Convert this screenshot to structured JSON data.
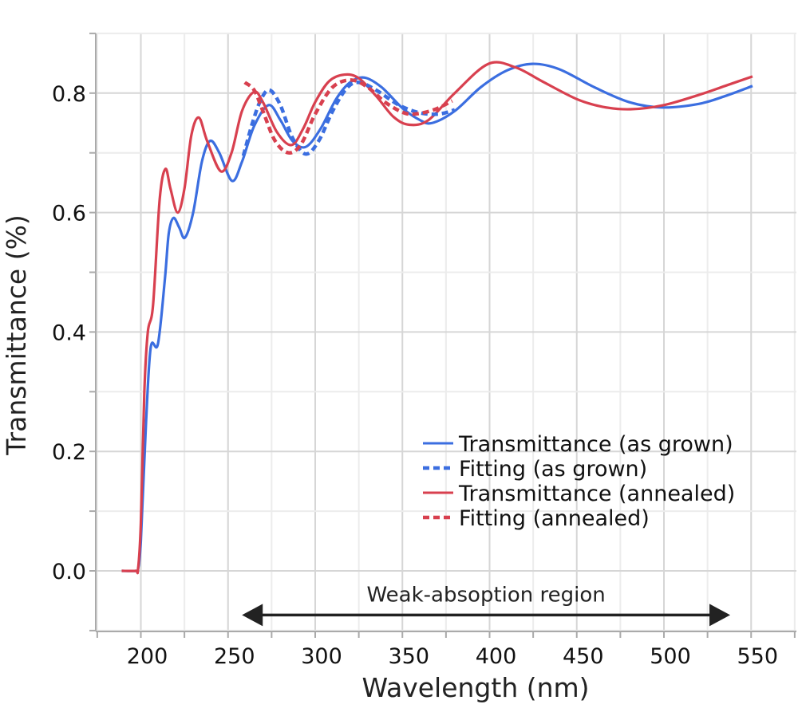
{
  "chart_data": {
    "type": "line",
    "xlabel": "Wavelength (nm)",
    "ylabel": "Transmittance (%)",
    "xlim": [
      174,
      576
    ],
    "ylim": [
      -0.1,
      0.9
    ],
    "xticks": [
      200,
      250,
      300,
      350,
      400,
      450,
      500,
      550
    ],
    "xtick_labels": [
      "200",
      "250",
      "300",
      "350",
      "400",
      "450",
      "500",
      "550"
    ],
    "yticks": [
      0.0,
      0.2,
      0.4,
      0.6,
      0.8
    ],
    "ytick_labels": [
      "0.0",
      "0.2",
      "0.4",
      "0.6",
      "0.8"
    ],
    "grid": true,
    "legend_position": "bottom-right",
    "series": [
      {
        "name": "Transmittance (as grown)",
        "color": "#3b6ee0",
        "dash": false,
        "x": [
          189,
          197,
          198.4,
          200,
          203,
          205.7,
          209.8,
          213.8,
          216,
          218.7,
          222,
          225.3,
          230,
          235,
          239.7,
          245,
          252.3,
          258,
          265,
          273.3,
          280,
          287,
          294.6,
          303,
          312,
          320,
          328.2,
          338,
          350,
          360,
          367.1,
          380,
          395,
          410,
          424.5,
          440,
          460,
          480,
          499,
          520,
          535,
          550.8
        ],
        "y": [
          0,
          0,
          0.003,
          0.05,
          0.25,
          0.375,
          0.38,
          0.489,
          0.565,
          0.591,
          0.575,
          0.558,
          0.6,
          0.685,
          0.72,
          0.7,
          0.653,
          0.685,
          0.745,
          0.78,
          0.755,
          0.72,
          0.71,
          0.74,
          0.79,
          0.818,
          0.826,
          0.81,
          0.775,
          0.755,
          0.75,
          0.77,
          0.81,
          0.838,
          0.849,
          0.84,
          0.81,
          0.785,
          0.776,
          0.782,
          0.795,
          0.812
        ]
      },
      {
        "name": "Fitting (as grown)",
        "color": "#3b6ee0",
        "dash": true,
        "x": [
          258.8,
          264,
          269,
          273.9,
          280,
          287,
          294.6,
          302,
          310,
          318,
          325,
          335,
          348,
          360,
          371,
          380
        ],
        "y": [
          0.695,
          0.75,
          0.79,
          0.805,
          0.78,
          0.725,
          0.698,
          0.72,
          0.77,
          0.808,
          0.818,
          0.805,
          0.78,
          0.767,
          0.765,
          0.772
        ]
      },
      {
        "name": "Transmittance (annealed)",
        "color": "#d8404f",
        "dash": false,
        "x": [
          189,
          197,
          198.4,
          200,
          202,
          204,
          207,
          210.8,
          214.1,
          217,
          221.1,
          225,
          229,
          233.3,
          238,
          245.9,
          252,
          258,
          264.9,
          270,
          278,
          286.3,
          293,
          300,
          308,
          316.8,
          325,
          335,
          345,
          354.1,
          365,
          380,
          399.3,
          415,
          430,
          450,
          465,
          480.8,
          500,
          520,
          535,
          550.8
        ],
        "y": [
          0,
          0,
          0.003,
          0.08,
          0.3,
          0.4,
          0.445,
          0.622,
          0.673,
          0.64,
          0.6,
          0.64,
          0.73,
          0.759,
          0.72,
          0.669,
          0.7,
          0.77,
          0.802,
          0.785,
          0.735,
          0.713,
          0.74,
          0.785,
          0.82,
          0.831,
          0.825,
          0.795,
          0.76,
          0.747,
          0.755,
          0.8,
          0.849,
          0.843,
          0.82,
          0.79,
          0.777,
          0.773,
          0.78,
          0.797,
          0.812,
          0.828
        ]
      },
      {
        "name": "Fitting (annealed)",
        "color": "#d8404f",
        "dash": true,
        "x": [
          259.6,
          265,
          270,
          277,
          284.8,
          292,
          300,
          310,
          320.6,
          330,
          340,
          350,
          357,
          368,
          378.6
        ],
        "y": [
          0.818,
          0.805,
          0.77,
          0.72,
          0.7,
          0.715,
          0.765,
          0.81,
          0.822,
          0.81,
          0.785,
          0.768,
          0.765,
          0.772,
          0.787
        ]
      }
    ],
    "annotations": [
      {
        "text": "Weak-absoption region",
        "type": "double-arrow",
        "x_range": [
          258,
          538
        ],
        "y": -0.07
      }
    ]
  }
}
